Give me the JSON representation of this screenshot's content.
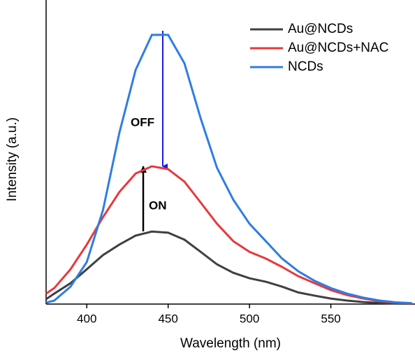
{
  "chart_data": {
    "type": "line",
    "x_label": "Wavelength (nm)",
    "y_label": "Intensity (a.u.)",
    "x": [
      375,
      380,
      390,
      400,
      410,
      420,
      430,
      440,
      450,
      460,
      470,
      480,
      490,
      500,
      510,
      520,
      530,
      540,
      550,
      560,
      570,
      580,
      590,
      600
    ],
    "series": [
      {
        "name": "Au@NCDs",
        "color": "#404040",
        "values": [
          1.7,
          3.6,
          7.2,
          12,
          16.9,
          20.5,
          23.6,
          25,
          24.6,
          22.2,
          18,
          13.7,
          10.8,
          8.9,
          7.7,
          6,
          4,
          2.9,
          1.9,
          1.2,
          0.7,
          0.4,
          0.2,
          0.1
        ]
      },
      {
        "name": "Au@NCDs+NAC",
        "color": "#e8383d",
        "values": [
          3.6,
          5.5,
          12,
          20.5,
          30,
          38.6,
          45,
          47.5,
          46.5,
          42.2,
          35,
          27.7,
          21.7,
          18,
          15.7,
          12.8,
          9.6,
          7.2,
          4.8,
          3.1,
          1.9,
          1,
          0.5,
          0.2
        ]
      },
      {
        "name": "NCDs",
        "color": "#2f7de1",
        "values": [
          0.5,
          1.2,
          6,
          14.5,
          32.5,
          59,
          80.7,
          92.8,
          92.8,
          83,
          64,
          47,
          36,
          27.7,
          21.7,
          15.7,
          11.3,
          8,
          5.5,
          3.6,
          2.2,
          1.2,
          0.6,
          0.3
        ]
      }
    ],
    "annotations": [
      "OFF",
      "ON"
    ],
    "xlim": [
      375,
      600
    ],
    "xticks": [
      400,
      450,
      500,
      550
    ],
    "ylim": [
      0,
      100
    ],
    "legend": "top-right"
  }
}
